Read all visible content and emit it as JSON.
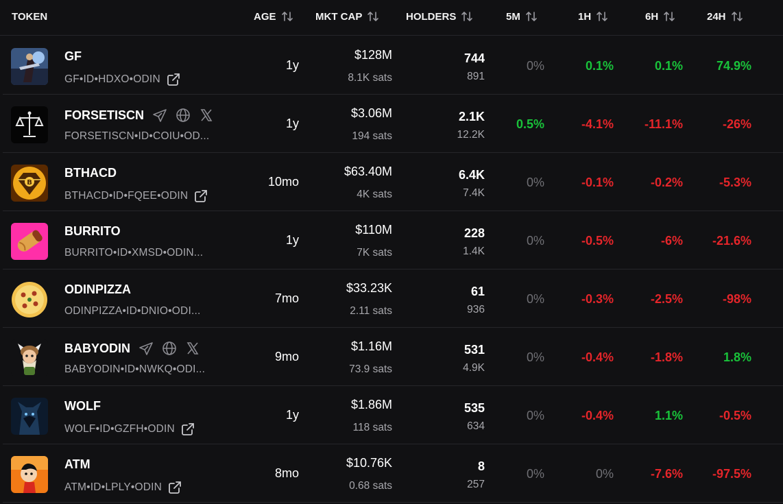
{
  "header": {
    "token": "TOKEN",
    "age": "AGE",
    "mkt_cap": "MKT CAP",
    "holders": "HOLDERS",
    "c5m": "5M",
    "c1h": "1H",
    "c6h": "6H",
    "c24h": "24H"
  },
  "colors": {
    "background": "#111113",
    "positive": "#19c23a",
    "negative": "#e5252a",
    "neutral": "#707075",
    "muted_text": "#a8a8ad"
  },
  "rows": [
    {
      "name": "GF",
      "ticker": "GF•ID•HDXO•ODIN",
      "icon": "external-link-icon",
      "avatar": "gf-avatar",
      "age": "1y",
      "mkt_cap": "$128M",
      "sats": "8.1K sats",
      "holders": "744",
      "holders_sub": "891",
      "c5m": "0%",
      "c5m_dir": "neutral",
      "c1h": "0.1%",
      "c1h_dir": "up",
      "c6h": "0.1%",
      "c6h_dir": "up",
      "c24h": "74.9%",
      "c24h_dir": "up"
    },
    {
      "name": "FORSETISCN",
      "ticker": "FORSETISCN•ID•COIU•OD...",
      "social": true,
      "avatar": "forsetiscn-avatar",
      "age": "1y",
      "mkt_cap": "$3.06M",
      "sats": "194 sats",
      "holders": "2.1K",
      "holders_sub": "12.2K",
      "c5m": "0.5%",
      "c5m_dir": "up",
      "c1h": "-4.1%",
      "c1h_dir": "down",
      "c6h": "-11.1%",
      "c6h_dir": "down",
      "c24h": "-26%",
      "c24h_dir": "down"
    },
    {
      "name": "BTHACD",
      "ticker": "BTHACD•ID•FQEE•ODIN",
      "icon": "external-link-icon",
      "avatar": "bthacd-avatar",
      "age": "10mo",
      "mkt_cap": "$63.40M",
      "sats": "4K sats",
      "holders": "6.4K",
      "holders_sub": "7.4K",
      "c5m": "0%",
      "c5m_dir": "neutral",
      "c1h": "-0.1%",
      "c1h_dir": "down",
      "c6h": "-0.2%",
      "c6h_dir": "down",
      "c24h": "-5.3%",
      "c24h_dir": "down"
    },
    {
      "name": "BURRITO",
      "ticker": "BURRITO•ID•XMSD•ODIN...",
      "avatar": "burrito-avatar",
      "age": "1y",
      "mkt_cap": "$110M",
      "sats": "7K sats",
      "holders": "228",
      "holders_sub": "1.4K",
      "c5m": "0%",
      "c5m_dir": "neutral",
      "c1h": "-0.5%",
      "c1h_dir": "down",
      "c6h": "-6%",
      "c6h_dir": "down",
      "c24h": "-21.6%",
      "c24h_dir": "down"
    },
    {
      "name": "ODINPIZZA",
      "ticker": "ODINPIZZA•ID•DNIO•ODI...",
      "avatar": "odinpizza-avatar",
      "age": "7mo",
      "mkt_cap": "$33.23K",
      "sats": "2.11 sats",
      "holders": "61",
      "holders_sub": "936",
      "c5m": "0%",
      "c5m_dir": "neutral",
      "c1h": "-0.3%",
      "c1h_dir": "down",
      "c6h": "-2.5%",
      "c6h_dir": "down",
      "c24h": "-98%",
      "c24h_dir": "down"
    },
    {
      "name": "BABYODIN",
      "ticker": "BABYODIN•ID•NWKQ•ODI...",
      "social": true,
      "avatar": "babyodin-avatar",
      "age": "9mo",
      "mkt_cap": "$1.16M",
      "sats": "73.9 sats",
      "holders": "531",
      "holders_sub": "4.9K",
      "c5m": "0%",
      "c5m_dir": "neutral",
      "c1h": "-0.4%",
      "c1h_dir": "down",
      "c6h": "-1.8%",
      "c6h_dir": "down",
      "c24h": "1.8%",
      "c24h_dir": "up"
    },
    {
      "name": "WOLF",
      "ticker": "WOLF•ID•GZFH•ODIN",
      "icon": "external-link-icon",
      "avatar": "wolf-avatar",
      "age": "1y",
      "mkt_cap": "$1.86M",
      "sats": "118 sats",
      "holders": "535",
      "holders_sub": "634",
      "c5m": "0%",
      "c5m_dir": "neutral",
      "c1h": "-0.4%",
      "c1h_dir": "down",
      "c6h": "1.1%",
      "c6h_dir": "up",
      "c24h": "-0.5%",
      "c24h_dir": "down"
    },
    {
      "name": "ATM",
      "ticker": "ATM•ID•LPLY•ODIN",
      "icon": "external-link-icon",
      "avatar": "atm-avatar",
      "age": "8mo",
      "mkt_cap": "$10.76K",
      "sats": "0.68 sats",
      "holders": "8",
      "holders_sub": "257",
      "c5m": "0%",
      "c5m_dir": "neutral",
      "c1h": "0%",
      "c1h_dir": "neutral",
      "c6h": "-7.6%",
      "c6h_dir": "down",
      "c24h": "-97.5%",
      "c24h_dir": "down"
    }
  ]
}
